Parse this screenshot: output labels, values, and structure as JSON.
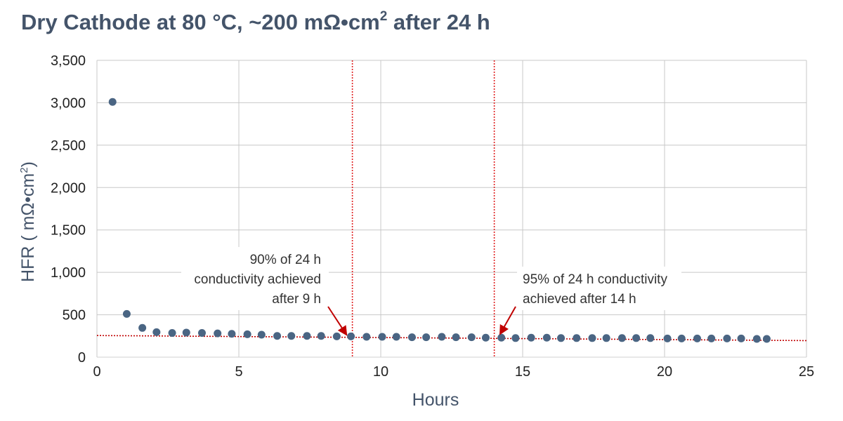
{
  "chart_data": {
    "type": "scatter",
    "title": {
      "main": "Dry Cathode at 80 °C, ~200 mΩ•cm",
      "sup": "2",
      "tail": " after 24 h"
    },
    "xlabel": "Hours",
    "ylabel": {
      "main": "HFR ( mΩ•cm",
      "sup": "2",
      "tail": ")"
    },
    "xlim": [
      0,
      25
    ],
    "ylim": [
      0,
      3500
    ],
    "xticks": [
      0,
      5,
      10,
      15,
      20,
      25
    ],
    "xtick_labels": [
      "0",
      "5",
      "10",
      "15",
      "20",
      "25"
    ],
    "yticks": [
      0,
      500,
      1000,
      1500,
      2000,
      2500,
      3000,
      3500
    ],
    "ytick_labels": [
      "0",
      "500",
      "1,000",
      "1,500",
      "2,000",
      "2,500",
      "3,000",
      "3,500"
    ],
    "grid": true,
    "series": [
      {
        "marker_color": "#4a6583",
        "x": [
          0.55,
          1.05,
          1.6,
          2.1,
          2.65,
          3.15,
          3.7,
          4.25,
          4.75,
          5.3,
          5.8,
          6.35,
          6.85,
          7.4,
          7.9,
          8.45,
          8.95,
          9.5,
          10.05,
          10.55,
          11.1,
          11.6,
          12.15,
          12.65,
          13.2,
          13.7,
          14.25,
          14.75,
          15.3,
          15.85,
          16.35,
          16.9,
          17.45,
          17.95,
          18.5,
          19.0,
          19.5,
          20.1,
          20.6,
          21.15,
          21.65,
          22.2,
          22.7,
          23.25,
          23.6
        ],
        "y": [
          3010,
          510,
          345,
          295,
          285,
          290,
          285,
          280,
          275,
          270,
          265,
          250,
          250,
          250,
          250,
          245,
          245,
          240,
          240,
          240,
          235,
          235,
          240,
          235,
          235,
          230,
          230,
          225,
          230,
          230,
          225,
          225,
          225,
          225,
          225,
          225,
          225,
          220,
          220,
          220,
          220,
          220,
          220,
          215,
          215
        ]
      }
    ],
    "trendline": {
      "x": [
        0,
        25
      ],
      "y": [
        255,
        195
      ],
      "color": "#c00000"
    },
    "vlines": [
      {
        "x": 9,
        "color": "#e02020"
      },
      {
        "x": 14,
        "color": "#e02020"
      }
    ],
    "annotations": [
      {
        "lines": [
          "90% of 24 h",
          "conductivity achieved",
          "after 9 h"
        ],
        "align": "right",
        "arrow_to": [
          8.8,
          260
        ]
      },
      {
        "lines": [
          "95% of 24 h conductivity",
          "achieved after 14 h"
        ],
        "align": "left",
        "arrow_to": [
          14.2,
          270
        ]
      }
    ]
  }
}
